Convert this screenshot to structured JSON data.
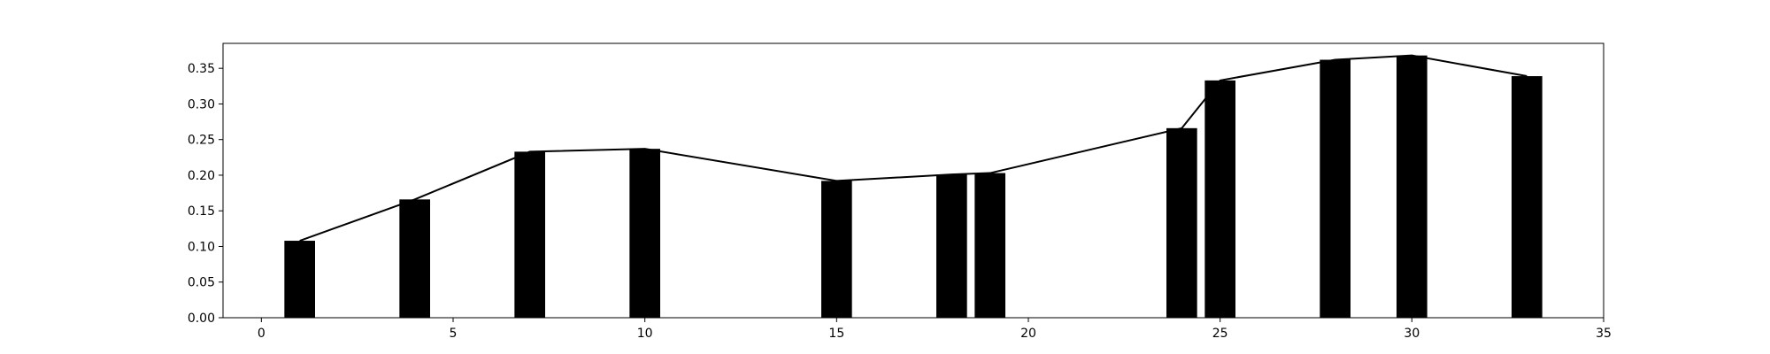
{
  "chart_data": {
    "type": "bar",
    "title": "",
    "xlabel": "",
    "ylabel": "",
    "xlim": [
      -1,
      35
    ],
    "ylim": [
      0,
      0.385
    ],
    "x_ticks": [
      0,
      5,
      10,
      15,
      20,
      25,
      30,
      35
    ],
    "y_ticks": [
      0.0,
      0.05,
      0.1,
      0.15,
      0.2,
      0.25,
      0.3,
      0.35
    ],
    "x_tick_labels": [
      "0",
      "5",
      "10",
      "15",
      "20",
      "25",
      "30",
      "35"
    ],
    "y_tick_labels": [
      "0.00",
      "0.05",
      "0.10",
      "0.15",
      "0.20",
      "0.25",
      "0.30",
      "0.35"
    ],
    "grid": false,
    "bar_width": 0.8,
    "bar_color": "#000000",
    "line_color": "#000000",
    "series": [
      {
        "type": "bar",
        "x": [
          1,
          4,
          7,
          10,
          15,
          18,
          19,
          24,
          25,
          28,
          30,
          33
        ],
        "values": [
          0.108,
          0.166,
          0.233,
          0.237,
          0.192,
          0.201,
          0.203,
          0.266,
          0.333,
          0.362,
          0.368,
          0.339
        ]
      },
      {
        "type": "line",
        "x": [
          1,
          4,
          7,
          10,
          15,
          18,
          19,
          24,
          25,
          28,
          30,
          33
        ],
        "values": [
          0.108,
          0.166,
          0.233,
          0.237,
          0.192,
          0.201,
          0.203,
          0.266,
          0.333,
          0.362,
          0.368,
          0.339
        ]
      }
    ]
  }
}
